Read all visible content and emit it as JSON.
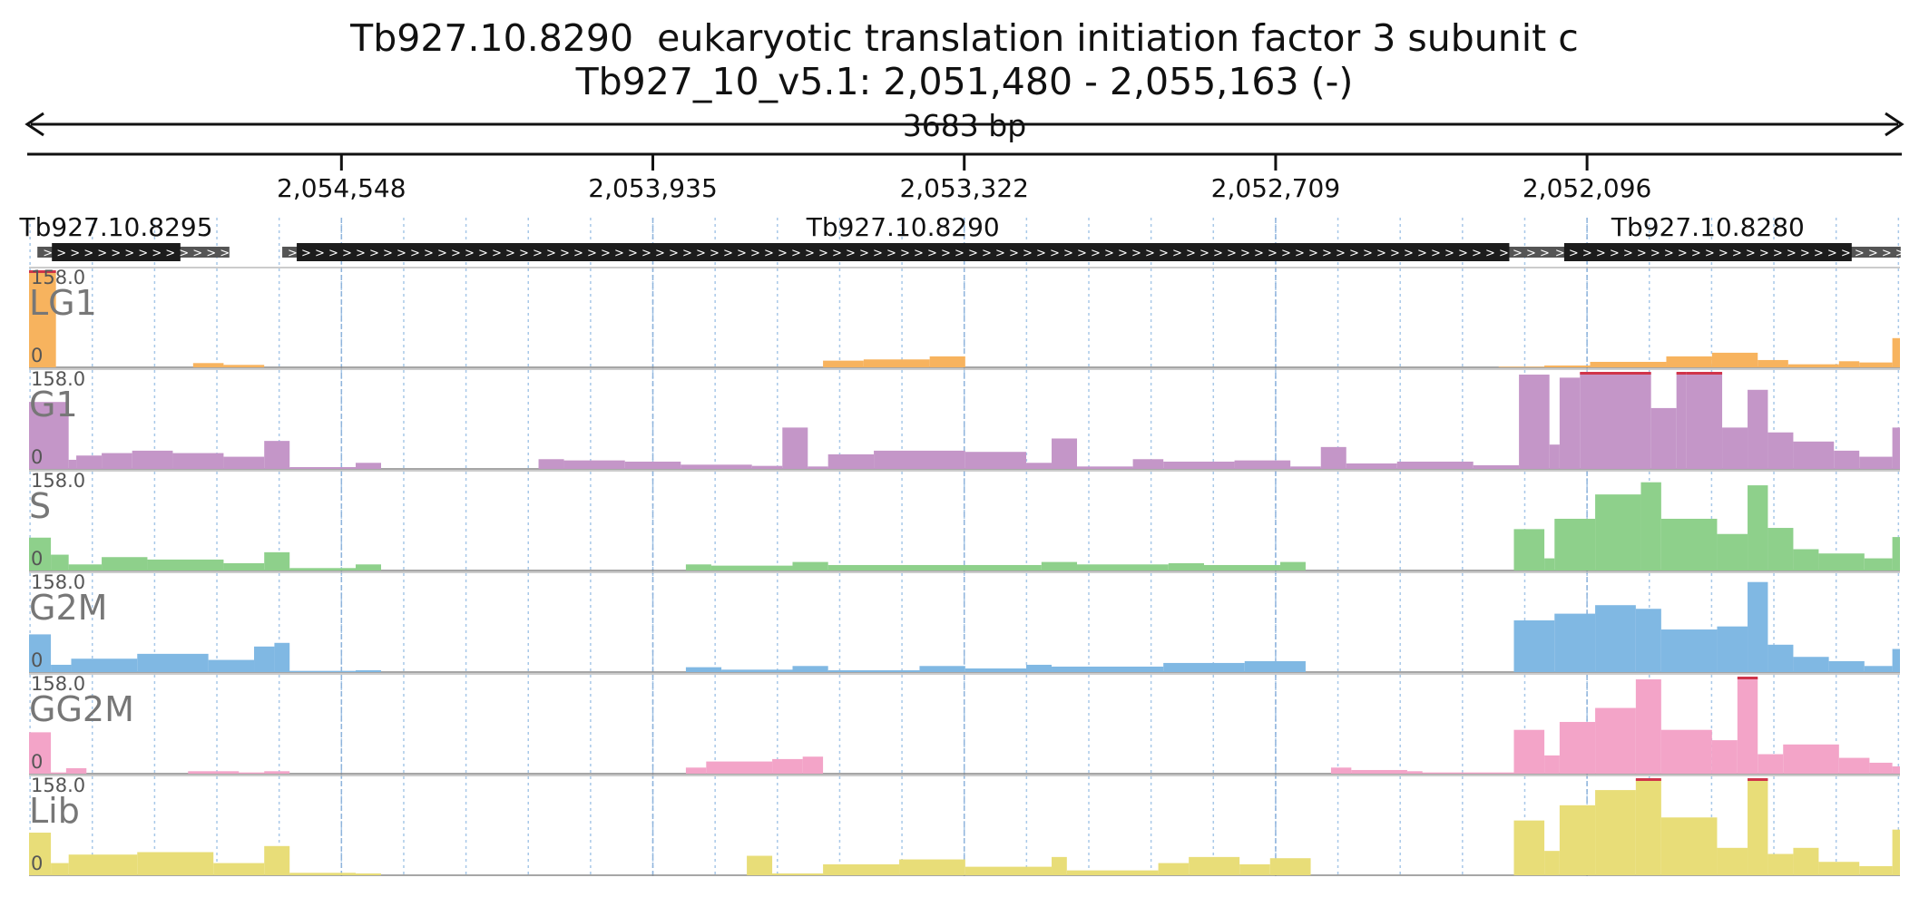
{
  "title": {
    "gene": "Tb927.10.8290  eukaryotic translation initiation factor 3 subunit c",
    "location": "Tb927_10_v5.1: 2,051,480 - 2,055,163 (-)"
  },
  "span_label": "3683 bp",
  "chart_data": {
    "type": "area",
    "title": "Tb927.10.8290  eukaryotic translation initiation factor 3 subunit c",
    "region": {
      "chromosome": "Tb927_10_v5.1",
      "start": 2051480,
      "end": 2055163,
      "strand": "-"
    },
    "xaxis": {
      "reversed": true,
      "ticks": [
        "2,054,548",
        "2,053,935",
        "2,053,322",
        "2,052,709",
        "2,052,096"
      ],
      "tick_values": [
        2054548,
        2053935,
        2053322,
        2052709,
        2052096
      ],
      "grid": true
    },
    "genes": [
      {
        "name": "Tb927.10.8295",
        "start": 2054865,
        "end": 2055118,
        "label_shown": true
      },
      {
        "name": "Tb927.10.8290",
        "start": 2052249,
        "end": 2054636,
        "label_shown": true
      },
      {
        "name": "Tb927.10.8280",
        "start": 2051575,
        "end": 2052141,
        "label_shown": true
      }
    ],
    "ylim": [
      0,
      158.0
    ],
    "tracks": [
      {
        "name": "LG1",
        "color": "#f7b35e",
        "ymax_label": "158.0",
        "ymin_label": "0",
        "segments": [
          [
            2055163,
            2055110,
            158
          ],
          [
            2055110,
            2054840,
            0
          ],
          [
            2054840,
            2054780,
            7
          ],
          [
            2054780,
            2054700,
            4
          ],
          [
            2054700,
            2053600,
            0
          ],
          [
            2053600,
            2053520,
            11
          ],
          [
            2053520,
            2053390,
            13
          ],
          [
            2053390,
            2053320,
            18
          ],
          [
            2053320,
            2052270,
            0
          ],
          [
            2052270,
            2052180,
            1
          ],
          [
            2052180,
            2052090,
            3
          ],
          [
            2052090,
            2051940,
            9
          ],
          [
            2051940,
            2051850,
            18
          ],
          [
            2051850,
            2051760,
            24
          ],
          [
            2051760,
            2051700,
            12
          ],
          [
            2051700,
            2051600,
            5
          ],
          [
            2051600,
            2051560,
            10
          ],
          [
            2051560,
            2051495,
            8
          ],
          [
            2051495,
            2051480,
            48
          ]
        ]
      },
      {
        "name": "G1",
        "color": "#c496c8",
        "ymax_label": "158.0",
        "ymin_label": "0",
        "segments": [
          [
            2055163,
            2055085,
            110
          ],
          [
            2055085,
            2055070,
            15
          ],
          [
            2055070,
            2055020,
            22
          ],
          [
            2055020,
            2054960,
            26
          ],
          [
            2054960,
            2054880,
            30
          ],
          [
            2054880,
            2054780,
            26
          ],
          [
            2054780,
            2054700,
            20
          ],
          [
            2054700,
            2054650,
            46
          ],
          [
            2054650,
            2054520,
            3
          ],
          [
            2054520,
            2054470,
            10
          ],
          [
            2054470,
            2054160,
            0
          ],
          [
            2054160,
            2054110,
            16
          ],
          [
            2054110,
            2053990,
            14
          ],
          [
            2053990,
            2053880,
            12
          ],
          [
            2053880,
            2053740,
            7
          ],
          [
            2053740,
            2053680,
            5
          ],
          [
            2053680,
            2053630,
            68
          ],
          [
            2053630,
            2053590,
            4
          ],
          [
            2053590,
            2053500,
            24
          ],
          [
            2053500,
            2053320,
            30
          ],
          [
            2053320,
            2053200,
            28
          ],
          [
            2053200,
            2053150,
            10
          ],
          [
            2053150,
            2053100,
            50
          ],
          [
            2053100,
            2052990,
            4
          ],
          [
            2052990,
            2052930,
            16
          ],
          [
            2052930,
            2052790,
            12
          ],
          [
            2052790,
            2052680,
            14
          ],
          [
            2052680,
            2052620,
            4
          ],
          [
            2052620,
            2052570,
            36
          ],
          [
            2052570,
            2052470,
            9
          ],
          [
            2052470,
            2052320,
            12
          ],
          [
            2052320,
            2052230,
            6
          ],
          [
            2052230,
            2052170,
            155
          ],
          [
            2052170,
            2052150,
            40
          ],
          [
            2052150,
            2052110,
            150
          ],
          [
            2052110,
            2051970,
            158
          ],
          [
            2051970,
            2051920,
            100
          ],
          [
            2051920,
            2051900,
            158
          ],
          [
            2051900,
            2051830,
            158
          ],
          [
            2051830,
            2051780,
            68
          ],
          [
            2051780,
            2051740,
            130
          ],
          [
            2051740,
            2051690,
            60
          ],
          [
            2051690,
            2051610,
            45
          ],
          [
            2051610,
            2051560,
            30
          ],
          [
            2051560,
            2051495,
            20
          ],
          [
            2051495,
            2051480,
            68
          ]
        ]
      },
      {
        "name": "S",
        "color": "#8ed08b",
        "ymax_label": "158.0",
        "ymin_label": "0",
        "segments": [
          [
            2055163,
            2055120,
            54
          ],
          [
            2055120,
            2055085,
            26
          ],
          [
            2055085,
            2055020,
            10
          ],
          [
            2055020,
            2054930,
            22
          ],
          [
            2054930,
            2054780,
            18
          ],
          [
            2054780,
            2054700,
            12
          ],
          [
            2054700,
            2054650,
            30
          ],
          [
            2054650,
            2054520,
            4
          ],
          [
            2054520,
            2054470,
            10
          ],
          [
            2054470,
            2053870,
            0
          ],
          [
            2053870,
            2053820,
            10
          ],
          [
            2053820,
            2053660,
            8
          ],
          [
            2053660,
            2053590,
            14
          ],
          [
            2053590,
            2053170,
            9
          ],
          [
            2053170,
            2053100,
            14
          ],
          [
            2053100,
            2052920,
            10
          ],
          [
            2052920,
            2052850,
            12
          ],
          [
            2052850,
            2052700,
            9
          ],
          [
            2052700,
            2052650,
            14
          ],
          [
            2052650,
            2052240,
            0
          ],
          [
            2052240,
            2052180,
            68
          ],
          [
            2052180,
            2052160,
            20
          ],
          [
            2052160,
            2052080,
            85
          ],
          [
            2052080,
            2051990,
            125
          ],
          [
            2051990,
            2051950,
            145
          ],
          [
            2051950,
            2051840,
            85
          ],
          [
            2051840,
            2051780,
            60
          ],
          [
            2051780,
            2051740,
            140
          ],
          [
            2051740,
            2051690,
            70
          ],
          [
            2051690,
            2051640,
            35
          ],
          [
            2051640,
            2051550,
            28
          ],
          [
            2051550,
            2051495,
            20
          ],
          [
            2051495,
            2051480,
            55
          ]
        ]
      },
      {
        "name": "G2M",
        "color": "#80b8e3",
        "ymax_label": "158.0",
        "ymin_label": "0",
        "segments": [
          [
            2055163,
            2055120,
            62
          ],
          [
            2055120,
            2055080,
            12
          ],
          [
            2055080,
            2054950,
            22
          ],
          [
            2054950,
            2054810,
            30
          ],
          [
            2054810,
            2054720,
            20
          ],
          [
            2054720,
            2054680,
            42
          ],
          [
            2054680,
            2054650,
            48
          ],
          [
            2054650,
            2054520,
            2
          ],
          [
            2054520,
            2054470,
            3
          ],
          [
            2054470,
            2053870,
            0
          ],
          [
            2053870,
            2053800,
            8
          ],
          [
            2053800,
            2053660,
            4
          ],
          [
            2053660,
            2053590,
            10
          ],
          [
            2053590,
            2053410,
            3
          ],
          [
            2053410,
            2053320,
            10
          ],
          [
            2053320,
            2053200,
            6
          ],
          [
            2053200,
            2053150,
            12
          ],
          [
            2053150,
            2052930,
            9
          ],
          [
            2052930,
            2052770,
            15
          ],
          [
            2052770,
            2052650,
            18
          ],
          [
            2052650,
            2052240,
            0
          ],
          [
            2052240,
            2052160,
            85
          ],
          [
            2052160,
            2052080,
            96
          ],
          [
            2052080,
            2052000,
            110
          ],
          [
            2052000,
            2051950,
            104
          ],
          [
            2051950,
            2051840,
            70
          ],
          [
            2051840,
            2051780,
            75
          ],
          [
            2051780,
            2051740,
            148
          ],
          [
            2051740,
            2051690,
            45
          ],
          [
            2051690,
            2051620,
            25
          ],
          [
            2051620,
            2051550,
            18
          ],
          [
            2051550,
            2051495,
            10
          ],
          [
            2051495,
            2051480,
            38
          ]
        ]
      },
      {
        "name": "GG2M",
        "color": "#f3a4c8",
        "ymax_label": "158.0",
        "ymin_label": "0",
        "segments": [
          [
            2055163,
            2055120,
            68
          ],
          [
            2055120,
            2055090,
            2
          ],
          [
            2055090,
            2055050,
            9
          ],
          [
            2055050,
            2054850,
            0
          ],
          [
            2054850,
            2054750,
            4
          ],
          [
            2054750,
            2054700,
            2
          ],
          [
            2054700,
            2054650,
            4
          ],
          [
            2054650,
            2053870,
            0
          ],
          [
            2053870,
            2053830,
            10
          ],
          [
            2053830,
            2053700,
            20
          ],
          [
            2053700,
            2053640,
            24
          ],
          [
            2053640,
            2053600,
            28
          ],
          [
            2053600,
            2052600,
            0
          ],
          [
            2052600,
            2052560,
            10
          ],
          [
            2052560,
            2052450,
            6
          ],
          [
            2052450,
            2052420,
            4
          ],
          [
            2052420,
            2052240,
            2
          ],
          [
            2052240,
            2052180,
            72
          ],
          [
            2052180,
            2052150,
            30
          ],
          [
            2052150,
            2052080,
            85
          ],
          [
            2052080,
            2052000,
            108
          ],
          [
            2052000,
            2051950,
            155
          ],
          [
            2051950,
            2051850,
            72
          ],
          [
            2051850,
            2051800,
            55
          ],
          [
            2051800,
            2051760,
            158
          ],
          [
            2051760,
            2051710,
            32
          ],
          [
            2051710,
            2051600,
            48
          ],
          [
            2051600,
            2051540,
            26
          ],
          [
            2051540,
            2051495,
            18
          ],
          [
            2051495,
            2051480,
            12
          ]
        ]
      },
      {
        "name": "Lib",
        "color": "#e8dd78",
        "ymax_label": "158.0",
        "ymin_label": "0",
        "segments": [
          [
            2055163,
            2055120,
            70
          ],
          [
            2055120,
            2055085,
            20
          ],
          [
            2055085,
            2054950,
            34
          ],
          [
            2054950,
            2054800,
            38
          ],
          [
            2054800,
            2054700,
            20
          ],
          [
            2054700,
            2054650,
            48
          ],
          [
            2054650,
            2054520,
            4
          ],
          [
            2054520,
            2054470,
            3
          ],
          [
            2054470,
            2053750,
            0
          ],
          [
            2053750,
            2053700,
            32
          ],
          [
            2053700,
            2053600,
            3
          ],
          [
            2053600,
            2053450,
            18
          ],
          [
            2053450,
            2053320,
            26
          ],
          [
            2053320,
            2053150,
            14
          ],
          [
            2053150,
            2053120,
            30
          ],
          [
            2053120,
            2052940,
            8
          ],
          [
            2052940,
            2052880,
            20
          ],
          [
            2052880,
            2052780,
            30
          ],
          [
            2052780,
            2052720,
            18
          ],
          [
            2052720,
            2052640,
            28
          ],
          [
            2052640,
            2052240,
            0
          ],
          [
            2052240,
            2052180,
            90
          ],
          [
            2052180,
            2052150,
            40
          ],
          [
            2052150,
            2052080,
            115
          ],
          [
            2052080,
            2052000,
            140
          ],
          [
            2052000,
            2051950,
            158
          ],
          [
            2051950,
            2051840,
            95
          ],
          [
            2051840,
            2051780,
            45
          ],
          [
            2051780,
            2051740,
            158
          ],
          [
            2051740,
            2051690,
            35
          ],
          [
            2051690,
            2051640,
            45
          ],
          [
            2051640,
            2051560,
            22
          ],
          [
            2051560,
            2051495,
            15
          ],
          [
            2051495,
            2051480,
            75
          ]
        ]
      }
    ]
  }
}
